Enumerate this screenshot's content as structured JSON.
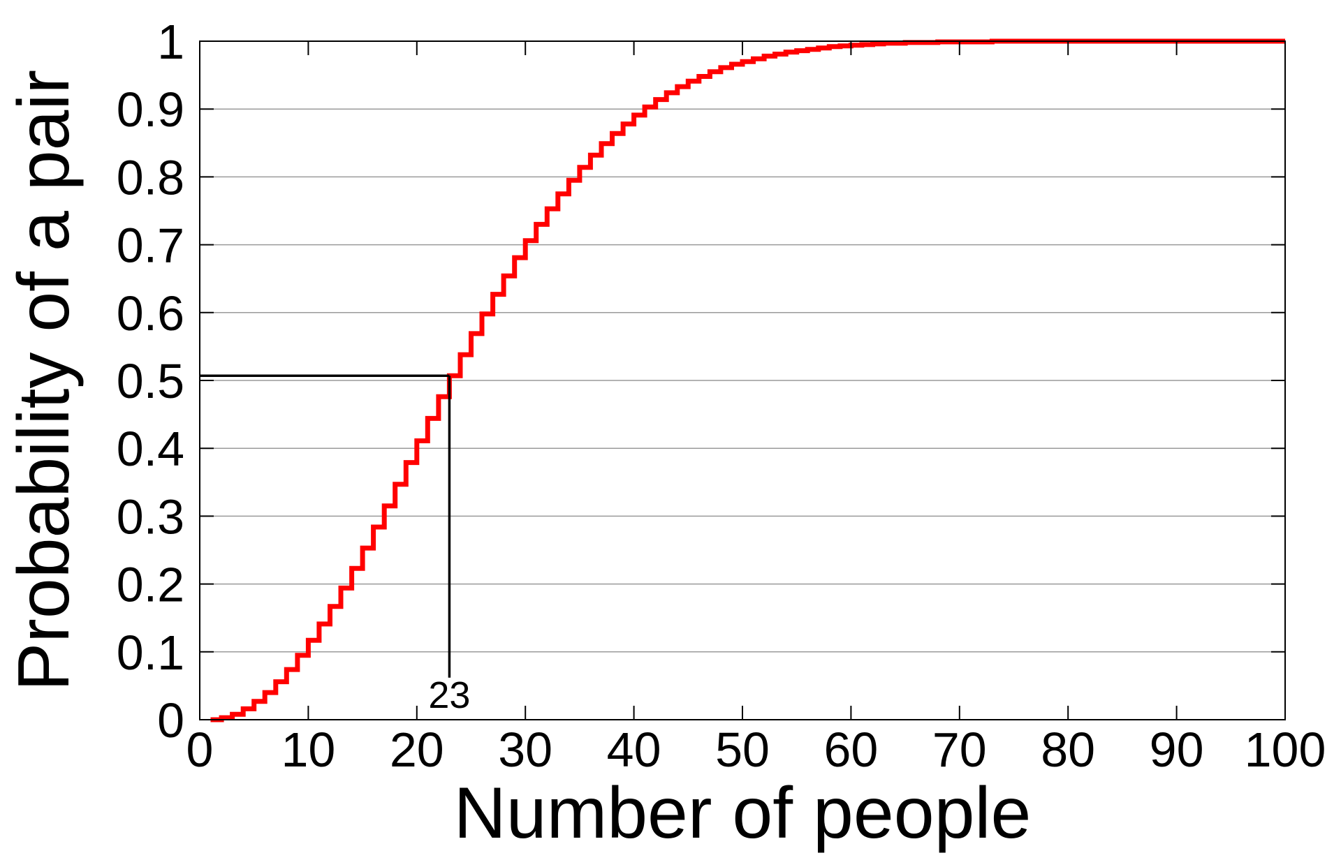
{
  "chart_data": {
    "type": "line",
    "step": true,
    "xlabel": "Number of people",
    "ylabel": "Probability of a pair",
    "xlim": [
      0,
      100
    ],
    "ylim": [
      0,
      1
    ],
    "x_ticks": [
      0,
      10,
      20,
      30,
      40,
      50,
      60,
      70,
      80,
      90,
      100
    ],
    "y_ticks": [
      0,
      0.1,
      0.2,
      0.3,
      0.4,
      0.5,
      0.6,
      0.7,
      0.8,
      0.9,
      1
    ],
    "x_tick_labels": [
      "0",
      "10",
      "20",
      "30",
      "40",
      "50",
      "60",
      "70",
      "80",
      "90",
      "100"
    ],
    "y_tick_labels": [
      "0",
      "0.1",
      "0.2",
      "0.3",
      "0.4",
      "0.5",
      "0.6",
      "0.7",
      "0.8",
      "0.9",
      "1"
    ],
    "grid": "horizontal",
    "series": [
      {
        "color": "#ff0000",
        "x": [
          1,
          2,
          3,
          4,
          5,
          6,
          7,
          8,
          9,
          10,
          11,
          12,
          13,
          14,
          15,
          16,
          17,
          18,
          19,
          20,
          21,
          22,
          23,
          24,
          25,
          26,
          27,
          28,
          29,
          30,
          31,
          32,
          33,
          34,
          35,
          36,
          37,
          38,
          39,
          40,
          41,
          42,
          43,
          44,
          45,
          46,
          47,
          48,
          49,
          50,
          51,
          52,
          53,
          54,
          55,
          56,
          57,
          58,
          59,
          60,
          61,
          62,
          63,
          64,
          65,
          66,
          67,
          68,
          69,
          70,
          71,
          72,
          73,
          74,
          75,
          76,
          77,
          78,
          79,
          80,
          81,
          82,
          83,
          84,
          85,
          86,
          87,
          88,
          89,
          90,
          91,
          92,
          93,
          94,
          95,
          96,
          97,
          98,
          99,
          100
        ],
        "values": [
          0.0,
          0.003,
          0.008,
          0.016,
          0.027,
          0.04,
          0.056,
          0.074,
          0.095,
          0.117,
          0.141,
          0.167,
          0.194,
          0.223,
          0.253,
          0.284,
          0.315,
          0.347,
          0.379,
          0.411,
          0.444,
          0.476,
          0.507,
          0.538,
          0.569,
          0.598,
          0.627,
          0.654,
          0.681,
          0.706,
          0.73,
          0.753,
          0.775,
          0.795,
          0.814,
          0.832,
          0.849,
          0.864,
          0.878,
          0.891,
          0.903,
          0.914,
          0.924,
          0.933,
          0.941,
          0.948,
          0.955,
          0.961,
          0.966,
          0.97,
          0.974,
          0.978,
          0.981,
          0.984,
          0.986,
          0.988,
          0.99,
          0.992,
          0.993,
          0.994,
          0.995,
          0.996,
          0.997,
          0.997,
          0.998,
          0.998,
          0.998,
          0.999,
          0.999,
          0.999,
          0.999,
          0.999,
          1.0,
          1.0,
          1.0,
          1.0,
          1.0,
          1.0,
          1.0,
          1.0,
          1.0,
          1.0,
          1.0,
          1.0,
          1.0,
          1.0,
          1.0,
          1.0,
          1.0,
          1.0,
          1.0,
          1.0,
          1.0,
          1.0,
          1.0,
          1.0,
          1.0,
          1.0,
          1.0,
          1.0
        ]
      }
    ],
    "annotations": [
      {
        "type": "reference-lines",
        "x": 23,
        "y": 0.507,
        "label": "23",
        "color": "#000000"
      }
    ]
  }
}
